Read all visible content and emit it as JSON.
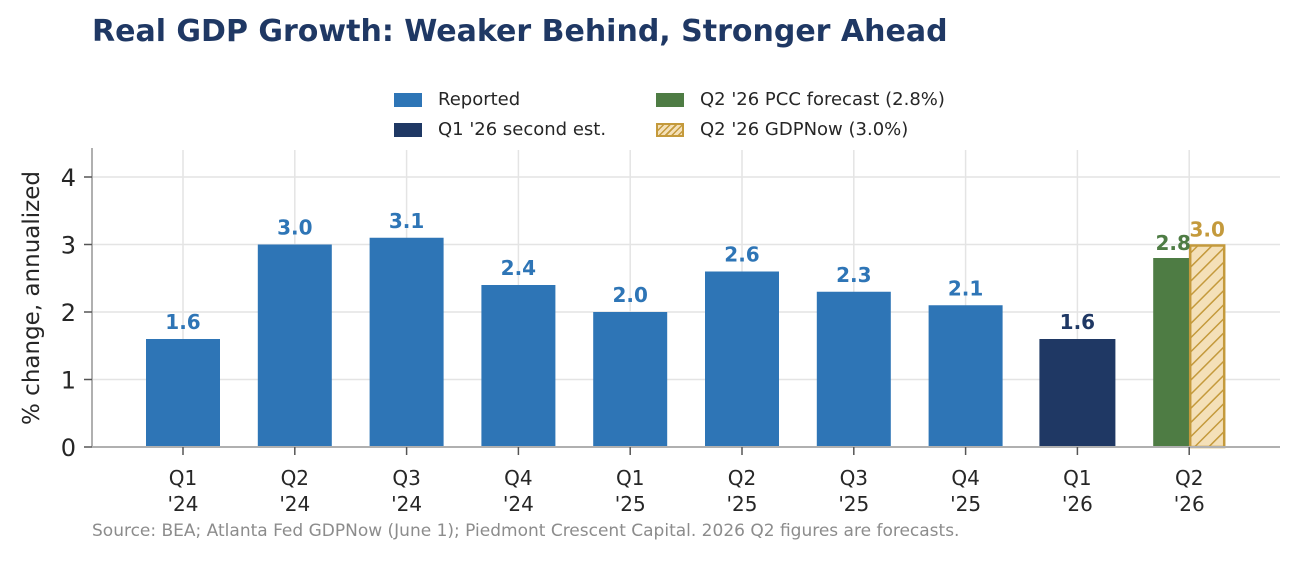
{
  "title": "Real GDP Growth: Weaker Behind, Stronger Ahead",
  "source": "Source: BEA; Atlanta Fed GDPNow (June 1); Piedmont Crescent Capital. 2026 Q2 figures are forecasts.",
  "legend": {
    "reported": "Reported",
    "q1_second": "Q1 '26 second est.",
    "pcc": "Q2 '26 PCC forecast (2.8%)",
    "gdpnow": "Q2 '26 GDPNow (3.0%)"
  },
  "colors": {
    "reported": "#2e75b6",
    "q1_second": "#1f3864",
    "pcc": "#4e7c44",
    "gdpnow_fill": "#f4e0b8",
    "gdpnow_edge": "#c49a3c",
    "title": "#1f3864"
  },
  "chart_data": {
    "type": "bar",
    "title": "Real GDP Growth: Weaker Behind, Stronger Ahead",
    "ylabel": "% change, annualized",
    "ylim": [
      0,
      4.4
    ],
    "yticks": [
      0,
      1,
      2,
      3,
      4
    ],
    "grid": true,
    "legend_position": "top-center",
    "categories": [
      [
        "Q1",
        "'24"
      ],
      [
        "Q2",
        "'24"
      ],
      [
        "Q3",
        "'24"
      ],
      [
        "Q4",
        "'24"
      ],
      [
        "Q1",
        "'25"
      ],
      [
        "Q2",
        "'25"
      ],
      [
        "Q3",
        "'25"
      ],
      [
        "Q4",
        "'25"
      ],
      [
        "Q1",
        "'26"
      ],
      [
        "Q2",
        "'26"
      ]
    ],
    "reported": [
      1.6,
      3.0,
      3.1,
      2.4,
      2.0,
      2.6,
      2.3,
      2.1
    ],
    "q1_second_est": 1.6,
    "q2_pcc_forecast": 2.8,
    "q2_gdpnow": 3.0,
    "data_labels": [
      "1.6",
      "3.0",
      "3.1",
      "2.4",
      "2.0",
      "2.6",
      "2.3",
      "2.1",
      "1.6",
      "2.8",
      "3.0"
    ]
  }
}
